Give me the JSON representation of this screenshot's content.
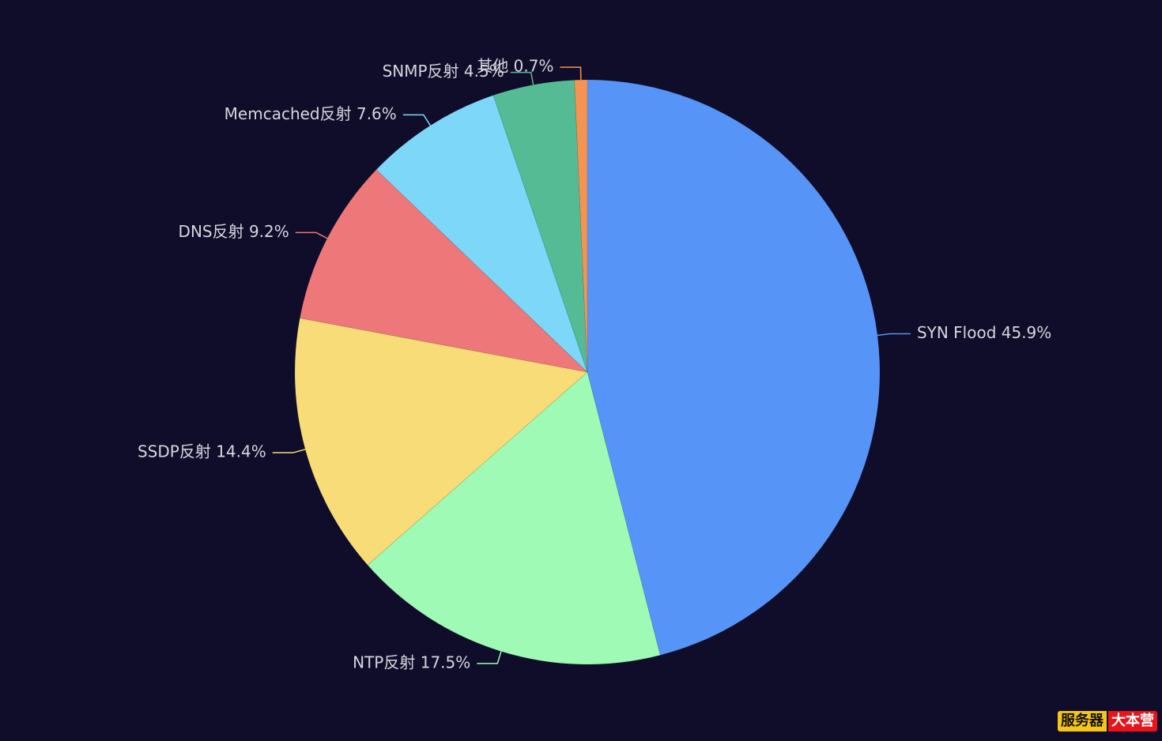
{
  "chart_data": {
    "type": "pie",
    "title": "",
    "legend": "none",
    "label_format": "{name} {percent}",
    "slices": [
      {
        "name": "SYN Flood",
        "percent": "45.9%",
        "value": 45.9,
        "color": "#5794f7"
      },
      {
        "name": "NTP反射",
        "percent": "17.5%",
        "value": 17.5,
        "color": "#9ffab5"
      },
      {
        "name": "SSDP反射",
        "percent": "14.4%",
        "value": 14.4,
        "color": "#f8dc77"
      },
      {
        "name": "DNS反射",
        "percent": "9.2%",
        "value": 9.2,
        "color": "#ee7879"
      },
      {
        "name": "Memcached反射",
        "percent": "7.6%",
        "value": 7.6,
        "color": "#7dd7f9"
      },
      {
        "name": "SNMP反射",
        "percent": "4.5%",
        "value": 4.5,
        "color": "#55bb94"
      },
      {
        "name": "其他",
        "percent": "0.7%",
        "value": 0.7,
        "color": "#f59450"
      }
    ]
  },
  "watermark": {
    "left_text": "服务器",
    "right_text": "大本营"
  }
}
